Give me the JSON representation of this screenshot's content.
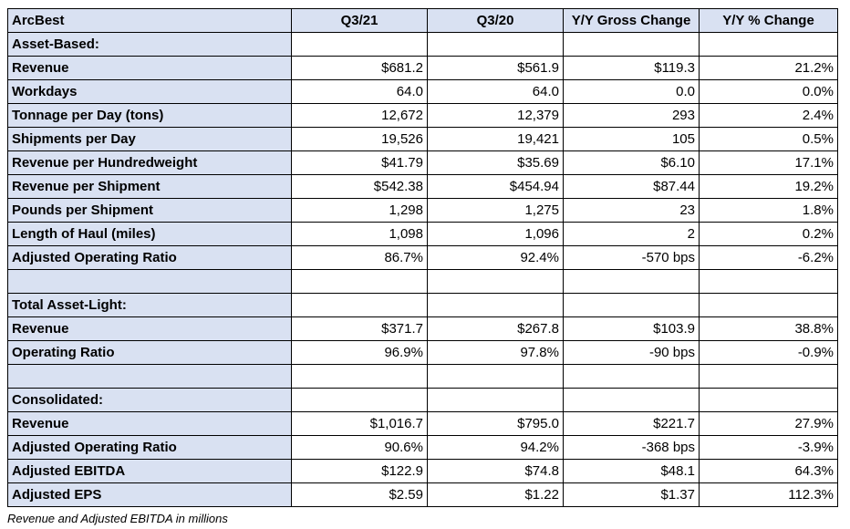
{
  "header": {
    "company": "ArcBest",
    "col1": "Q3/21",
    "col2": "Q3/20",
    "col3": "Y/Y Gross Change",
    "col4": "Y/Y % Change"
  },
  "rows": [
    {
      "kind": "section",
      "label": "Asset-Based:",
      "values": [
        "",
        "",
        "",
        ""
      ]
    },
    {
      "kind": "data",
      "label": "Revenue",
      "values": [
        "$681.2",
        "$561.9",
        "$119.3",
        "21.2%"
      ]
    },
    {
      "kind": "data",
      "label": "Workdays",
      "values": [
        "64.0",
        "64.0",
        "0.0",
        "0.0%"
      ]
    },
    {
      "kind": "data",
      "label": "Tonnage per Day (tons)",
      "values": [
        "12,672",
        "12,379",
        "293",
        "2.4%"
      ]
    },
    {
      "kind": "data",
      "label": "Shipments per Day",
      "values": [
        "19,526",
        "19,421",
        "105",
        "0.5%"
      ]
    },
    {
      "kind": "data",
      "label": "Revenue per Hundredweight",
      "values": [
        "$41.79",
        "$35.69",
        "$6.10",
        "17.1%"
      ]
    },
    {
      "kind": "data",
      "label": "Revenue per Shipment",
      "values": [
        "$542.38",
        "$454.94",
        "$87.44",
        "19.2%"
      ]
    },
    {
      "kind": "data",
      "label": "Pounds per Shipment",
      "values": [
        "1,298",
        "1,275",
        "23",
        "1.8%"
      ]
    },
    {
      "kind": "data",
      "label": "Length of Haul (miles)",
      "values": [
        "1,098",
        "1,096",
        "2",
        "0.2%"
      ]
    },
    {
      "kind": "data",
      "label": "Adjusted Operating Ratio",
      "values": [
        "86.7%",
        "92.4%",
        "-570 bps",
        "-6.2%"
      ]
    },
    {
      "kind": "blank",
      "label": "",
      "values": [
        "",
        "",
        "",
        ""
      ]
    },
    {
      "kind": "section",
      "label": "Total Asset-Light:",
      "values": [
        "",
        "",
        "",
        ""
      ]
    },
    {
      "kind": "data",
      "label": "Revenue",
      "values": [
        "$371.7",
        "$267.8",
        "$103.9",
        "38.8%"
      ]
    },
    {
      "kind": "data",
      "label": "Operating Ratio",
      "values": [
        "96.9%",
        "97.8%",
        "-90 bps",
        "-0.9%"
      ]
    },
    {
      "kind": "blank",
      "label": "",
      "values": [
        "",
        "",
        "",
        ""
      ]
    },
    {
      "kind": "section",
      "label": "Consolidated:",
      "values": [
        "",
        "",
        "",
        ""
      ]
    },
    {
      "kind": "data",
      "label": "Revenue",
      "values": [
        "$1,016.7",
        "$795.0",
        "$221.7",
        "27.9%"
      ]
    },
    {
      "kind": "data",
      "label": "Adjusted Operating Ratio",
      "values": [
        "90.6%",
        "94.2%",
        "-368 bps",
        "-3.9%"
      ]
    },
    {
      "kind": "data",
      "label": "Adjusted EBITDA",
      "values": [
        "$122.9",
        "$74.8",
        "$48.1",
        "64.3%"
      ]
    },
    {
      "kind": "data",
      "label": "Adjusted EPS",
      "values": [
        "$2.59",
        "$1.22",
        "$1.37",
        "112.3%"
      ]
    }
  ],
  "footnote": "Revenue and Adjusted EBITDA in millions",
  "colors": {
    "label_fill": "#d9e1f2",
    "cell_fill": "#ffffff",
    "border": "#000000"
  }
}
